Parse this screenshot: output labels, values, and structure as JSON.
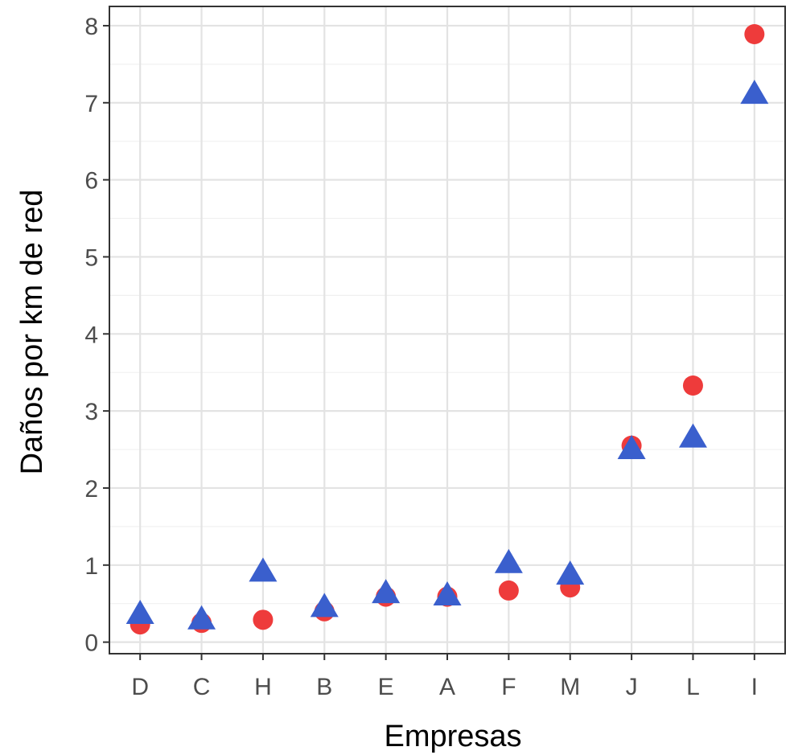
{
  "chart_data": {
    "type": "scatter",
    "xlabel": "Empresas",
    "ylabel": "Daños por km de red",
    "categories": [
      "D",
      "C",
      "H",
      "B",
      "E",
      "A",
      "F",
      "M",
      "J",
      "L",
      "I"
    ],
    "ylim": [
      -0.15,
      8.25
    ],
    "yticks": [
      0,
      1,
      2,
      3,
      4,
      5,
      6,
      7,
      8
    ],
    "grid": true,
    "legend": "none",
    "series": [
      {
        "marker": "circle",
        "color": "#ee3b3b",
        "values": [
          0.23,
          0.25,
          0.29,
          0.4,
          0.59,
          0.59,
          0.67,
          0.71,
          2.55,
          3.33,
          7.89
        ]
      },
      {
        "marker": "triangle",
        "color": "#3a5fcd",
        "values": [
          0.34,
          0.27,
          0.89,
          0.43,
          0.61,
          0.58,
          1.0,
          0.85,
          2.48,
          2.63,
          7.09
        ]
      }
    ]
  }
}
